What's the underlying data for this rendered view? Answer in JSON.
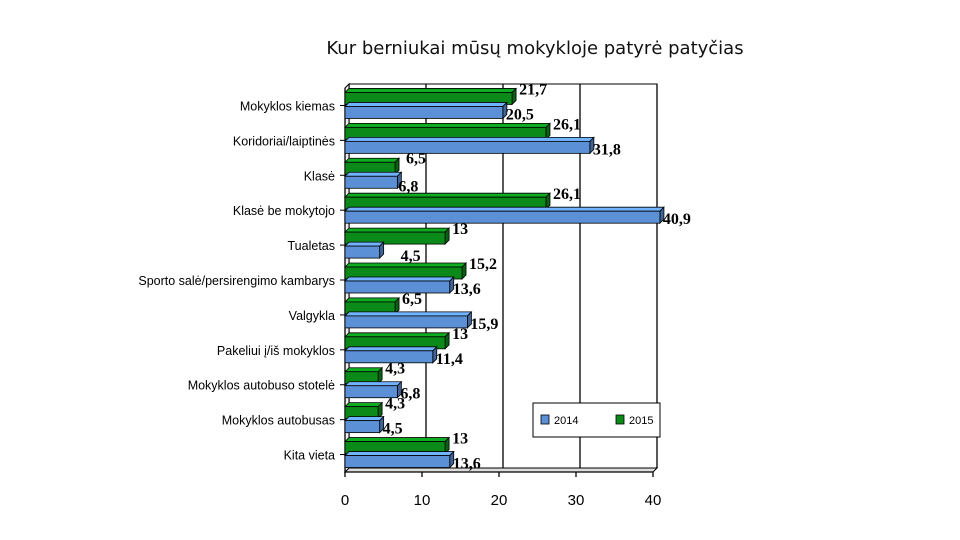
{
  "chart_data": {
    "type": "bar",
    "orientation": "horizontal",
    "title": "Kur berniukai mūsų mokykloje patyrė patyčias",
    "categories": [
      "Mokyklos kiemas",
      "Koridoriai/laiptinės",
      "Klasė",
      "Klasė be mokytojo",
      "Tualetas",
      "Sporto salė/persirengimo kambarys",
      "Valgykla",
      "Pakeliui į/iš mokyklos",
      "Mokyklos autobuso stotelė",
      "Mokyklos autobusas",
      "Kita vieta"
    ],
    "series": [
      {
        "name": "2014",
        "color": "#5b8fd6",
        "values": [
          20.5,
          31.8,
          6.8,
          40.9,
          4.5,
          13.6,
          15.9,
          11.4,
          6.8,
          4.5,
          13.6
        ]
      },
      {
        "name": "2015",
        "color": "#0b8a1a",
        "values": [
          21.7,
          26.1,
          6.5,
          26.1,
          13,
          15.2,
          6.5,
          13,
          4.3,
          4.3,
          13
        ]
      }
    ],
    "data_labels": {
      "2014": [
        "20,5",
        "31,8",
        "6,8",
        "40,9",
        "4,5",
        "13,6",
        "15,9",
        "11,4",
        "6,8",
        "4,5",
        "13,6"
      ],
      "2015": [
        "21,7",
        "26,1",
        "6,5",
        "26,1",
        "13",
        "15,2",
        "6,5",
        "13",
        "4,3",
        "4,3",
        "13"
      ]
    },
    "xlim": [
      0,
      40
    ],
    "xticks": [
      "0",
      "10",
      "20",
      "30",
      "40"
    ],
    "grid": true,
    "legend": "bottom-right"
  }
}
